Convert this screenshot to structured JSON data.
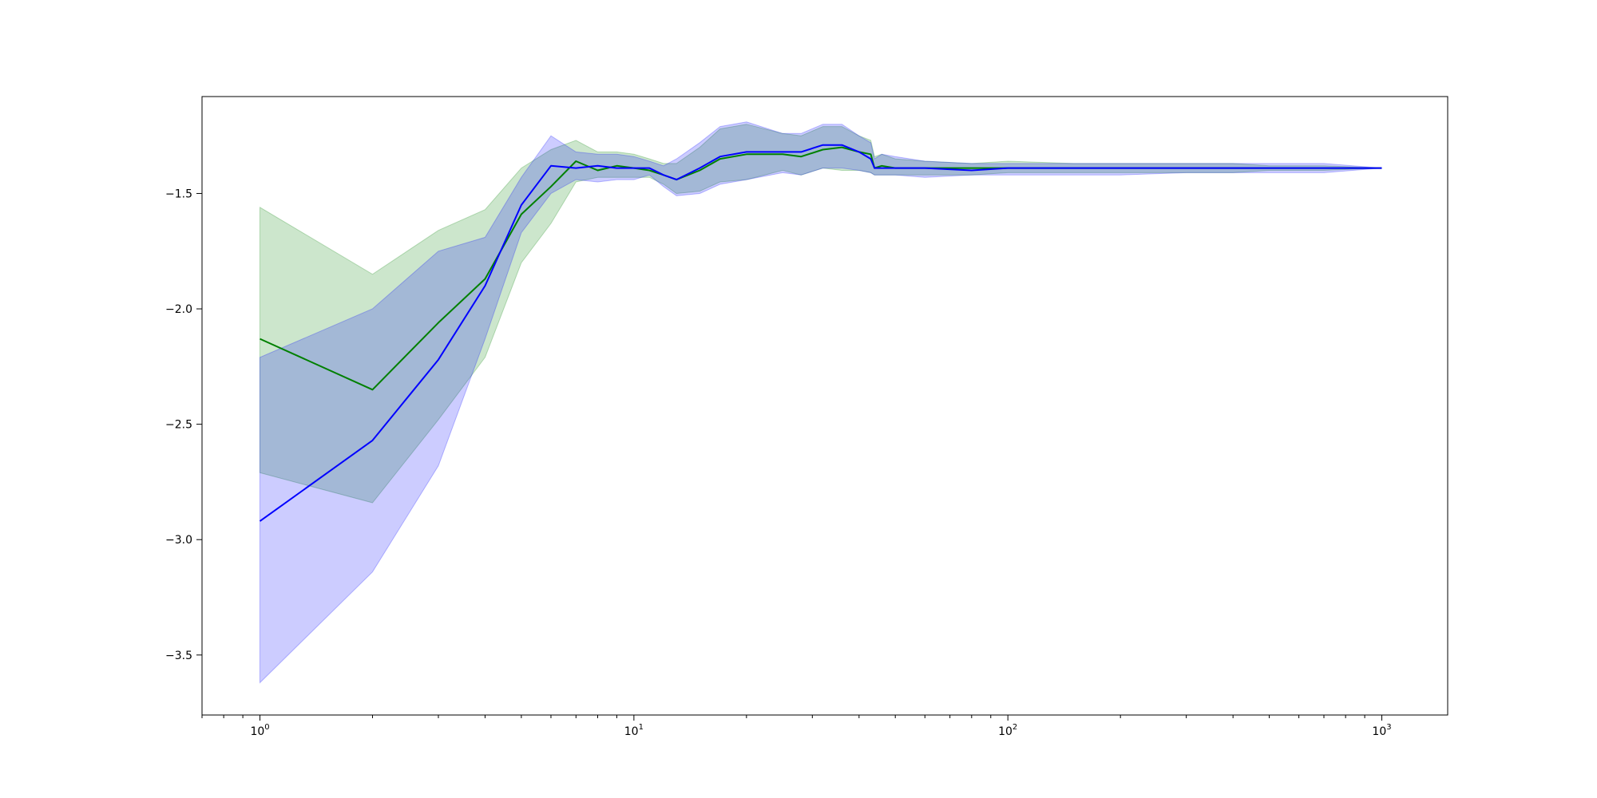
{
  "chart_data": {
    "type": "line",
    "title": "",
    "xlabel": "",
    "ylabel": "",
    "x_scale": "log",
    "xlim": [
      0.7,
      1500
    ],
    "ylim": [
      -3.76,
      -1.08
    ],
    "grid": false,
    "legend": "none",
    "x_ticks": [
      {
        "value": 1,
        "base": "10",
        "exp": "0"
      },
      {
        "value": 10,
        "base": "10",
        "exp": "1"
      },
      {
        "value": 100,
        "base": "10",
        "exp": "2"
      },
      {
        "value": 1000,
        "base": "10",
        "exp": "3"
      }
    ],
    "y_ticks": [
      {
        "value": -1.5,
        "label": "−1.5"
      },
      {
        "value": -2.0,
        "label": "−2.0"
      },
      {
        "value": -2.5,
        "label": "−2.5"
      },
      {
        "value": -3.0,
        "label": "−3.0"
      },
      {
        "value": -3.5,
        "label": "−3.5"
      }
    ],
    "series": [
      {
        "color": "#008000",
        "band_color": "#008000",
        "x": [
          1,
          2,
          3,
          4,
          5,
          6,
          7,
          8,
          9,
          10,
          11,
          12,
          13,
          15,
          17,
          20,
          25,
          28,
          32,
          36,
          40,
          43,
          44,
          46,
          50,
          60,
          80,
          100,
          150,
          200,
          300,
          400,
          500,
          700,
          1000
        ],
        "y": [
          -2.13,
          -2.35,
          -2.06,
          -1.87,
          -1.59,
          -1.47,
          -1.36,
          -1.4,
          -1.38,
          -1.39,
          -1.4,
          -1.42,
          -1.44,
          -1.4,
          -1.35,
          -1.33,
          -1.33,
          -1.34,
          -1.31,
          -1.3,
          -1.32,
          -1.33,
          -1.39,
          -1.38,
          -1.39,
          -1.39,
          -1.39,
          -1.39,
          -1.39,
          -1.39,
          -1.39,
          -1.39,
          -1.39,
          -1.39,
          -1.39
        ],
        "upper": [
          -1.56,
          -1.85,
          -1.66,
          -1.57,
          -1.39,
          -1.31,
          -1.27,
          -1.32,
          -1.32,
          -1.33,
          -1.35,
          -1.37,
          -1.37,
          -1.3,
          -1.22,
          -1.2,
          -1.24,
          -1.25,
          -1.21,
          -1.21,
          -1.25,
          -1.27,
          -1.34,
          -1.33,
          -1.35,
          -1.36,
          -1.37,
          -1.36,
          -1.37,
          -1.37,
          -1.37,
          -1.37,
          -1.38,
          -1.38,
          -1.39
        ],
        "lower": [
          -2.71,
          -2.84,
          -2.48,
          -2.21,
          -1.8,
          -1.63,
          -1.45,
          -1.43,
          -1.43,
          -1.43,
          -1.43,
          -1.46,
          -1.5,
          -1.49,
          -1.45,
          -1.44,
          -1.4,
          -1.42,
          -1.39,
          -1.4,
          -1.4,
          -1.41,
          -1.42,
          -1.42,
          -1.42,
          -1.42,
          -1.42,
          -1.41,
          -1.41,
          -1.41,
          -1.41,
          -1.41,
          -1.4,
          -1.4,
          -1.39
        ]
      },
      {
        "color": "#0000ff",
        "band_color": "#0000ff",
        "x": [
          1,
          2,
          3,
          4,
          5,
          6,
          7,
          8,
          9,
          10,
          11,
          12,
          13,
          15,
          17,
          20,
          25,
          28,
          32,
          36,
          40,
          43,
          44,
          46,
          50,
          60,
          80,
          100,
          150,
          200,
          300,
          400,
          500,
          700,
          1000
        ],
        "y": [
          -2.92,
          -2.57,
          -2.22,
          -1.9,
          -1.55,
          -1.38,
          -1.39,
          -1.38,
          -1.39,
          -1.39,
          -1.39,
          -1.42,
          -1.44,
          -1.39,
          -1.34,
          -1.32,
          -1.32,
          -1.32,
          -1.29,
          -1.29,
          -1.32,
          -1.35,
          -1.39,
          -1.39,
          -1.39,
          -1.39,
          -1.4,
          -1.39,
          -1.39,
          -1.39,
          -1.39,
          -1.39,
          -1.39,
          -1.39,
          -1.39
        ],
        "upper": [
          -2.21,
          -2.0,
          -1.75,
          -1.69,
          -1.43,
          -1.25,
          -1.32,
          -1.33,
          -1.33,
          -1.34,
          -1.36,
          -1.38,
          -1.35,
          -1.28,
          -1.21,
          -1.19,
          -1.24,
          -1.24,
          -1.2,
          -1.2,
          -1.25,
          -1.28,
          -1.35,
          -1.33,
          -1.34,
          -1.36,
          -1.37,
          -1.37,
          -1.37,
          -1.37,
          -1.37,
          -1.37,
          -1.37,
          -1.37,
          -1.39
        ],
        "lower": [
          -3.62,
          -3.14,
          -2.68,
          -2.13,
          -1.67,
          -1.5,
          -1.44,
          -1.45,
          -1.44,
          -1.44,
          -1.42,
          -1.47,
          -1.51,
          -1.5,
          -1.46,
          -1.44,
          -1.41,
          -1.42,
          -1.39,
          -1.39,
          -1.4,
          -1.41,
          -1.42,
          -1.42,
          -1.42,
          -1.43,
          -1.42,
          -1.42,
          -1.42,
          -1.42,
          -1.41,
          -1.41,
          -1.41,
          -1.41,
          -1.39
        ]
      }
    ]
  }
}
